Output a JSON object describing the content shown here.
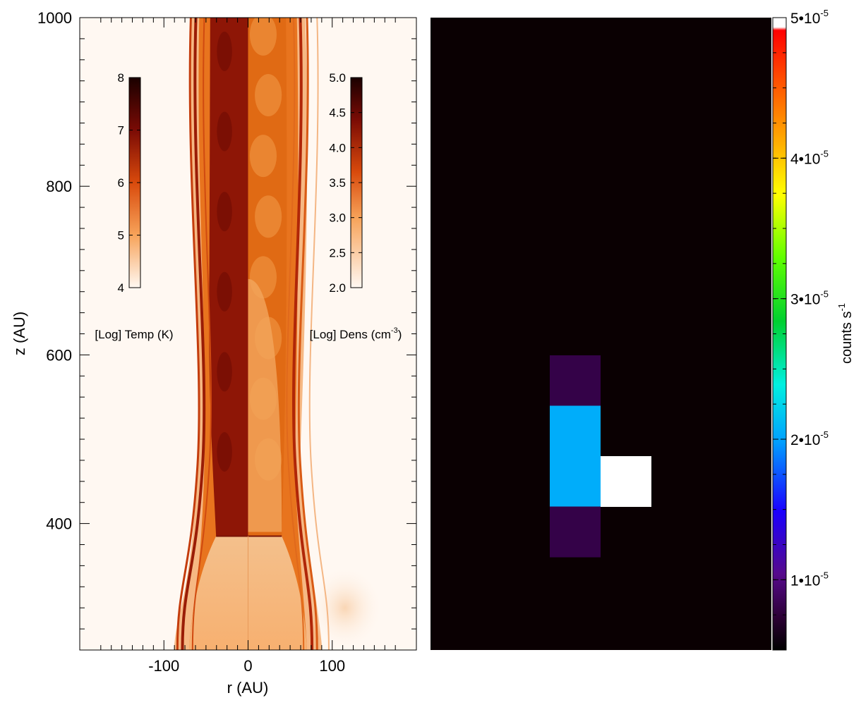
{
  "chart_data": [
    {
      "type": "heatmap",
      "panel": "left",
      "xlabel": "r (AU)",
      "ylabel": "z (AU)",
      "xlim": [
        -200,
        200
      ],
      "ylim": [
        250,
        1000
      ],
      "x_ticks": [
        -100,
        0,
        100
      ],
      "y_ticks": [
        400,
        600,
        800,
        1000
      ],
      "x_tick_labels": [
        "-100",
        "0",
        "100"
      ],
      "y_tick_labels": [
        "400",
        "600",
        "800",
        "1000"
      ],
      "halves": [
        {
          "side": "left (r < 0)",
          "quantity": "temperature"
        },
        {
          "side": "right (r > 0)",
          "quantity": "density"
        }
      ],
      "colorbars": [
        {
          "label": "[Log] Temp (K)",
          "range": [
            4,
            8
          ],
          "ticks": [
            4,
            5,
            6,
            7,
            8
          ],
          "tick_labels": [
            "4",
            "5",
            "6",
            "7",
            "8"
          ],
          "colors": [
            "#fff8f2",
            "#f7a35a",
            "#d94a0c",
            "#7a0b05",
            "#1a0000"
          ]
        },
        {
          "label_main": "[Log] Dens (cm",
          "label_sup": "-3",
          "label_end": ")",
          "range": [
            2.0,
            5.0
          ],
          "ticks": [
            2.0,
            2.5,
            3.0,
            3.5,
            4.0,
            4.5,
            5.0
          ],
          "tick_labels": [
            "2.0",
            "2.5",
            "3.0",
            "3.5",
            "4.0",
            "4.5",
            "5.0"
          ],
          "colors": [
            "#fff8f2",
            "#f7a35a",
            "#d94a0c",
            "#7a0b05",
            "#1a0000"
          ]
        }
      ],
      "features": {
        "jet_half_width_AU": 45,
        "outer_shell_r_AU": 80,
        "working_surface_z_AU": 385,
        "hot_core_logT": 6.6,
        "jet_core_logn": 2.8
      }
    },
    {
      "type": "heatmap",
      "panel": "right",
      "background_value": 5e-06,
      "cells": [
        {
          "col": 0,
          "row": 0,
          "value": 8e-06
        },
        {
          "col": 0,
          "row": 1,
          "value": 2.05e-05
        },
        {
          "col": 0,
          "row": 2,
          "value": 2.05e-05
        },
        {
          "col": 1,
          "row": 2,
          "value": 5e-05
        },
        {
          "col": 0,
          "row": 3,
          "value": 8e-06
        }
      ],
      "colorbar": {
        "label_main": "counts s",
        "label_sup": "-1",
        "range": [
          5e-06,
          5e-05
        ],
        "ticks": [
          1e-05,
          2e-05,
          3e-05,
          4e-05,
          5e-05
        ],
        "tick_labels": [
          {
            "main": "1•10",
            "sup": "-5"
          },
          {
            "main": "2•10",
            "sup": "-5"
          },
          {
            "main": "3•10",
            "sup": "-5"
          },
          {
            "main": "4•10",
            "sup": "-5"
          },
          {
            "main": "5•10",
            "sup": "-5"
          }
        ]
      }
    }
  ]
}
